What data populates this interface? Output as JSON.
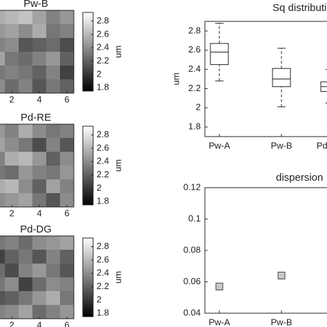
{
  "chart_data": [
    {
      "type": "heatmap",
      "title": "Pw-B",
      "xticks": [
        2,
        4,
        6
      ],
      "clim": [
        1.75,
        2.93
      ],
      "cticks": [
        1.8,
        2,
        2.2,
        2.4,
        2.6,
        2.8
      ],
      "colorbar_label": "um",
      "z": [
        [
          2.55,
          2.6,
          2.65,
          2.5,
          2.35,
          2.45
        ],
        [
          2.45,
          2.5,
          2.4,
          2.55,
          2.3,
          2.35
        ],
        [
          2.35,
          2.4,
          2.15,
          2.2,
          2.25,
          2.1
        ],
        [
          2.5,
          2.3,
          2.25,
          2.35,
          2.45,
          2.2
        ],
        [
          2.3,
          2.35,
          2.3,
          2.2,
          2.35,
          2.05
        ],
        [
          2.4,
          2.25,
          2.35,
          2.15,
          2.3,
          2.2
        ]
      ]
    },
    {
      "type": "heatmap",
      "title": "Pd-RE",
      "xticks": [
        2,
        4,
        6
      ],
      "clim": [
        1.75,
        2.93
      ],
      "cticks": [
        1.8,
        2,
        2.2,
        2.4,
        2.6,
        2.8
      ],
      "colorbar_label": "um",
      "z": [
        [
          2.45,
          2.35,
          2.55,
          2.4,
          2.3,
          2.35
        ],
        [
          2.5,
          2.4,
          2.3,
          2.1,
          2.35,
          2.15
        ],
        [
          2.35,
          2.55,
          2.6,
          2.45,
          2.2,
          2.4
        ],
        [
          2.3,
          2.25,
          2.45,
          2.35,
          2.3,
          2.45
        ],
        [
          2.55,
          2.6,
          2.4,
          2.2,
          2.5,
          2.35
        ],
        [
          2.4,
          2.45,
          2.5,
          2.3,
          2.15,
          2.4
        ]
      ]
    },
    {
      "type": "heatmap",
      "title": "Pd-DG",
      "xticks": [
        2,
        4,
        6
      ],
      "clim": [
        1.75,
        2.93
      ],
      "cticks": [
        1.8,
        2,
        2.2,
        2.4,
        2.6,
        2.8
      ],
      "colorbar_label": "um",
      "z": [
        [
          2.3,
          2.35,
          2.25,
          2.4,
          2.45,
          2.5
        ],
        [
          2.05,
          2.2,
          2.3,
          2.15,
          2.35,
          2.2
        ],
        [
          2.25,
          2.1,
          2.35,
          2.45,
          2.3,
          2.15
        ],
        [
          2.3,
          2.4,
          2.05,
          2.25,
          2.4,
          2.35
        ],
        [
          2.15,
          2.2,
          2.3,
          2.45,
          2.55,
          2.3
        ],
        [
          2.35,
          2.4,
          2.5,
          2.25,
          2.35,
          2.45
        ]
      ]
    },
    {
      "type": "box",
      "title": "Sq distribution",
      "y_label": "um",
      "categories": [
        "Pw-A",
        "Pw-B",
        "Pd-RE"
      ],
      "whisker_low": [
        2.28,
        2.01,
        2.05
      ],
      "q1": [
        2.45,
        2.22,
        2.17
      ],
      "median": [
        2.58,
        2.3,
        2.22
      ],
      "q3": [
        2.67,
        2.41,
        2.27
      ],
      "whisker_high": [
        2.88,
        2.62,
        2.4
      ],
      "ylim": [
        1.7,
        2.9
      ],
      "yticks": [
        1.8,
        2,
        2.2,
        2.4,
        2.6,
        2.8
      ]
    },
    {
      "type": "scatter",
      "title": "dispersion",
      "categories": [
        "Pw-A",
        "Pw-B"
      ],
      "values": [
        0.057,
        0.064
      ],
      "color": "#c8c8c8",
      "ylim": [
        0.04,
        0.12
      ],
      "yticks": [
        0.04,
        0.06,
        0.08,
        0.1,
        0.12
      ]
    }
  ]
}
